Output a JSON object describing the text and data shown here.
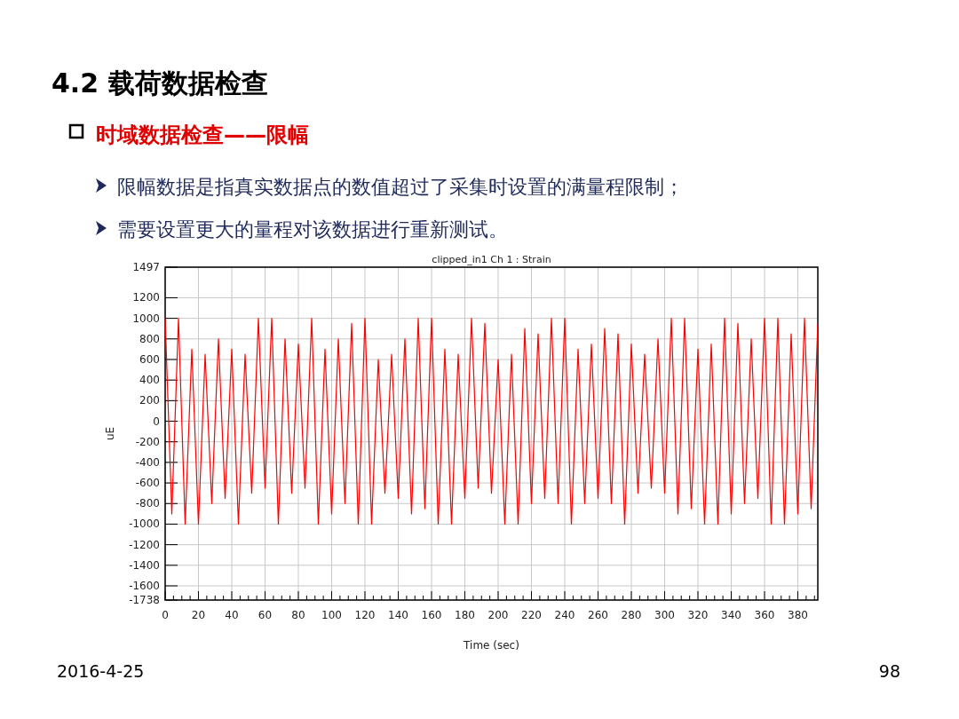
{
  "chart_data": {
    "type": "line",
    "title": "4.2 载荷数据检查",
    "subtitle": "时域数据检查——限幅",
    "annotations": [
      "限幅数据是指真实数据点的数值超过了采集时设置的满量程限制；",
      "需要设置更大的量程对该数据进行重新测试。",
      "clipped_in1  Ch 1 : Strain",
      "2016-4-25",
      "98"
    ],
    "xlabel": "Time (sec)",
    "ylabel": "uE",
    "x": [
      0,
      4,
      8,
      12,
      16,
      20,
      24,
      28,
      32,
      36,
      40,
      44,
      48,
      52,
      56,
      60,
      64,
      68,
      72,
      76,
      80,
      84,
      88,
      92,
      96,
      100,
      104,
      108,
      112,
      116,
      120,
      124,
      128,
      132,
      136,
      140,
      144,
      148,
      152,
      156,
      160,
      164,
      168,
      172,
      176,
      180,
      184,
      188,
      192,
      196,
      200,
      204,
      208,
      212,
      216,
      220,
      224,
      228,
      232,
      236,
      240,
      244,
      248,
      252,
      256,
      260,
      264,
      268,
      272,
      276,
      280,
      284,
      288,
      292,
      296,
      300,
      304,
      308,
      312,
      316,
      320,
      324,
      328,
      332,
      336,
      340,
      344,
      348,
      352,
      356,
      360,
      364,
      368,
      372,
      376,
      380,
      384,
      388,
      392
    ],
    "series": [
      {
        "color": "#ff0000",
        "values": [
          1000,
          -900,
          1000,
          -1000,
          700,
          -1000,
          650,
          -800,
          800,
          -750,
          700,
          -1000,
          650,
          -700,
          1000,
          -650,
          1000,
          -1000,
          800,
          -700,
          750,
          -650,
          1000,
          -1000,
          700,
          -900,
          800,
          -800,
          950,
          -1000,
          1000,
          -1000,
          600,
          -700,
          650,
          -750,
          800,
          -900,
          1000,
          -850,
          1000,
          -1000,
          700,
          -1000,
          650,
          -750,
          1000,
          -650,
          950,
          -700,
          600,
          -1000,
          650,
          -1000,
          900,
          -800,
          850,
          -750,
          1000,
          -800,
          1000,
          -1000,
          700,
          -800,
          750,
          -750,
          900,
          -800,
          850,
          -1000,
          750,
          -700,
          650,
          -650,
          800,
          -700,
          1000,
          -900,
          1000,
          -850,
          700,
          -1000,
          750,
          -1000,
          1000,
          -900,
          950,
          -800,
          800,
          -750,
          1000,
          -1000,
          1000,
          -1000,
          850,
          -900,
          1000,
          -850,
          950
        ]
      }
    ],
    "xlim": [
      0,
      392
    ],
    "ylim": [
      -1738,
      1497
    ],
    "xticks": [
      0,
      20,
      40,
      60,
      80,
      100,
      120,
      140,
      160,
      180,
      200,
      220,
      240,
      260,
      280,
      300,
      320,
      340,
      360,
      380
    ],
    "yticks": [
      1497,
      1200,
      1000,
      800,
      600,
      400,
      200,
      0,
      -200,
      -400,
      -600,
      -800,
      -1000,
      -1200,
      -1400,
      -1600,
      -1738
    ],
    "grid": true,
    "marker": "none",
    "line_style": "solid"
  }
}
